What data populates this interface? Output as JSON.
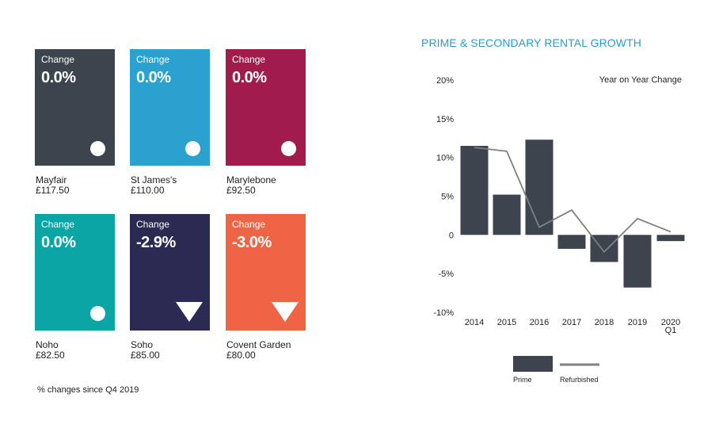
{
  "tiles": [
    {
      "label": "Change",
      "value": "0.0%",
      "name": "Mayfair",
      "price": "£117.50",
      "color": "#3d444e",
      "indicator": "circle"
    },
    {
      "label": "Change",
      "value": "0.0%",
      "name": "St James's",
      "price": "£110.00",
      "color": "#2aa1cf",
      "indicator": "circle"
    },
    {
      "label": "Change",
      "value": "0.0%",
      "name": "Marylebone",
      "price": "£92.50",
      "color": "#a11c4c",
      "indicator": "circle"
    },
    {
      "label": "Change",
      "value": "0.0%",
      "name": "Noho",
      "price": "£82.50",
      "color": "#0aa5a5",
      "indicator": "circle"
    },
    {
      "label": "Change",
      "value": "-2.9%",
      "name": "Soho",
      "price": "£85.00",
      "color": "#2b2a52",
      "indicator": "triangle-down"
    },
    {
      "label": "Change",
      "value": "-3.0%",
      "name": "Covent Garden",
      "price": "£80.00",
      "color": "#ef6445",
      "indicator": "triangle-down"
    }
  ],
  "footnote": "% changes since Q4 2019",
  "chart_data": {
    "type": "bar",
    "title": "PRIME & SECONDARY RENTAL GROWTH",
    "annotation": "Year on Year Change",
    "categories": [
      "2014",
      "2015",
      "2016",
      "2017",
      "2018",
      "2019",
      "2020 Q1"
    ],
    "category_lines": [
      [
        "2014"
      ],
      [
        "2015"
      ],
      [
        "2016"
      ],
      [
        "2017"
      ],
      [
        "2018"
      ],
      [
        "2019"
      ],
      [
        "2020",
        "Q1"
      ]
    ],
    "series": [
      {
        "name": "Prime",
        "type": "bar",
        "values": [
          11.5,
          5.2,
          12.3,
          -1.8,
          -3.5,
          -6.8,
          -0.8
        ],
        "color": "#3d444e"
      },
      {
        "name": "Refurbished",
        "type": "line",
        "values": [
          11.3,
          10.8,
          1.0,
          3.2,
          -2.2,
          2.1,
          0.4
        ],
        "color": "#808080"
      }
    ],
    "ylim": [
      -10,
      20
    ],
    "yticks": [
      20,
      15,
      10,
      5,
      0,
      -5,
      -10
    ],
    "ytick_labels": [
      "20%",
      "15%",
      "10%",
      "5%",
      "0",
      "-5%",
      "-10%"
    ],
    "legend_position": "bottom"
  }
}
